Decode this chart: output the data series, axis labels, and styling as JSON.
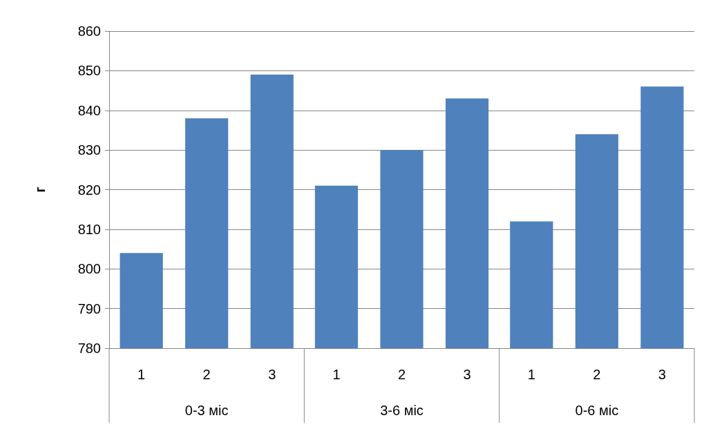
{
  "chart_data": {
    "type": "bar",
    "ylabel": "г",
    "categories": [
      "0-3 міс",
      "3-6 міс",
      "0-6 міс"
    ],
    "series": [
      {
        "name": "1",
        "color": "#4f81bd",
        "values": [
          804,
          821,
          812
        ]
      },
      {
        "name": "2",
        "color": "#4f81bd",
        "values": [
          838,
          830,
          834
        ]
      },
      {
        "name": "3",
        "color": "#4f81bd",
        "values": [
          849,
          843,
          846
        ]
      }
    ],
    "ylim": [
      780,
      860
    ],
    "yticks": [
      780,
      790,
      800,
      810,
      820,
      830,
      840,
      850,
      860
    ],
    "grid": "y",
    "legend": false
  }
}
